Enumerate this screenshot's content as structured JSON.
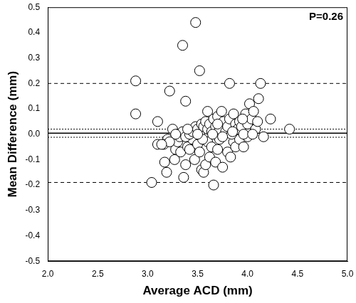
{
  "chart_data": {
    "type": "scatter",
    "x_label": "Average ACD (mm)",
    "y_label": "Mean Difference (mm)",
    "annotation": "P=0.26",
    "xlim": [
      2,
      5
    ],
    "xticks": [
      {
        "value": 2,
        "label": "2.0"
      },
      2.5,
      {
        "value": 3,
        "label": "3.0"
      },
      3.5,
      {
        "value": 4,
        "label": "4.0"
      },
      4.5,
      {
        "value": 5,
        "label": "5.0"
      }
    ],
    "ylim": [
      -0.5,
      0.5
    ],
    "yticks": [
      -0.5,
      -0.4,
      -0.3,
      -0.2,
      -0.1,
      {
        "value": 0,
        "label": "0.0"
      },
      0.1,
      0.2,
      0.3,
      0.4,
      0.5
    ],
    "grid": false,
    "marker": "circle",
    "color": "#000000",
    "x": [
      2.88,
      2.88,
      3.1,
      3.22,
      3.35,
      3.38,
      3.48,
      3.52,
      3.82,
      4.13,
      4.11,
      4.42,
      4.23,
      4.16,
      3.04,
      3.1,
      3.17,
      3.19,
      3.2,
      3.16,
      3.27,
      3.28,
      3.3,
      3.33,
      3.36,
      3.38,
      3.4,
      3.42,
      3.45,
      3.47,
      3.5,
      3.52,
      3.54,
      3.56,
      3.58,
      3.6,
      3.62,
      3.64,
      3.66,
      3.68,
      3.7,
      3.72,
      3.75,
      3.8,
      3.83,
      3.86,
      3.88,
      3.92,
      3.96,
      4.0,
      3.25,
      3.3,
      3.32,
      3.35,
      3.38,
      3.42,
      3.45,
      3.48,
      3.5,
      3.52,
      3.54,
      3.56,
      3.58,
      3.6,
      3.62,
      3.64,
      3.66,
      3.68,
      3.7,
      3.72,
      3.74,
      3.76,
      3.78,
      3.8,
      3.82,
      3.84,
      3.86,
      3.88,
      3.9,
      3.92,
      3.94,
      3.96,
      3.98,
      4.0,
      4.02,
      4.04,
      4.06,
      4.08,
      4.1,
      3.55,
      3.65,
      3.75,
      3.85,
      3.95,
      4.05,
      3.6,
      3.7,
      3.5,
      3.4,
      3.28,
      3.22,
      3.14
    ],
    "values": [
      0.21,
      0.08,
      0.05,
      0.17,
      0.35,
      0.13,
      0.44,
      0.25,
      0.2,
      0.2,
      0.14,
      0.02,
      0.06,
      -0.01,
      -0.19,
      -0.04,
      -0.11,
      -0.15,
      -0.02,
      -0.04,
      -0.1,
      -0.06,
      -0.03,
      -0.07,
      -0.17,
      -0.12,
      -0.05,
      -0.06,
      -0.02,
      -0.1,
      -0.04,
      -0.07,
      -0.14,
      -0.15,
      -0.12,
      -0.03,
      -0.09,
      -0.05,
      -0.2,
      -0.11,
      -0.06,
      -0.02,
      -0.13,
      -0.07,
      -0.09,
      -0.03,
      -0.05,
      -0.02,
      -0.05,
      -0.01,
      0.02,
      0.0,
      -0.01,
      0.01,
      -0.01,
      0.0,
      0.01,
      0.03,
      0.02,
      0.0,
      0.04,
      0.03,
      0.05,
      0.02,
      0.04,
      0.01,
      0.06,
      0.03,
      0.07,
      0.02,
      0.09,
      0.05,
      0.01,
      0.03,
      0.06,
      0.0,
      0.08,
      0.04,
      0.02,
      0.05,
      0.03,
      0.0,
      0.08,
      0.04,
      0.12,
      0.06,
      0.09,
      0.02,
      0.05,
      -0.02,
      0.0,
      -0.01,
      0.01,
      0.06,
      0.0,
      0.09,
      0.04,
      0.0,
      0.02,
      0.0,
      -0.03,
      -0.04
    ],
    "hlines": [
      {
        "y": 0.2,
        "line_style": "dashed"
      },
      {
        "y": 0.02,
        "line_style": "dotted"
      },
      {
        "y": 0.004,
        "line_style": "solid"
      },
      {
        "y": -0.012,
        "line_style": "dotted"
      },
      {
        "y": -0.19,
        "line_style": "dashed"
      }
    ]
  }
}
